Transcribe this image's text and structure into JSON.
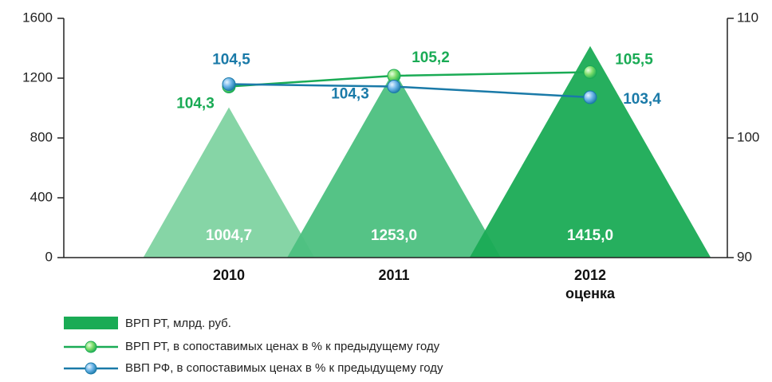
{
  "chart_data": {
    "type": "bar-line",
    "categories": [
      "2010",
      "2011",
      "2012 оценка"
    ],
    "series": [
      {
        "name": "ВРП РТ, млрд. руб.",
        "type": "bar",
        "color": "#1aab55",
        "colors": [
          "#7fd3a1",
          "#4cc07f",
          "#1aab55"
        ],
        "values": [
          1004.7,
          1253.0,
          1415.0
        ],
        "value_labels": [
          "1004,7",
          "1253,0",
          "1415,0"
        ]
      },
      {
        "name": "ВРП РТ, в сопоставимых ценах в % к предыдущему году",
        "type": "line",
        "axis": "y2",
        "color": "#1aab55",
        "values": [
          104.3,
          105.2,
          105.5
        ],
        "value_labels": [
          "104,3",
          "105,2",
          "105,5"
        ]
      },
      {
        "name": "ВВП РФ, в сопоставимых ценах в % к предыдущему году",
        "type": "line",
        "axis": "y2",
        "color": "#1a7aa8",
        "values": [
          104.5,
          104.3,
          103.4
        ],
        "value_labels": [
          "104,5",
          "104,3",
          "103,4"
        ]
      }
    ],
    "ylim": [
      0,
      1600
    ],
    "yticks": [
      0,
      400,
      800,
      1200,
      1600
    ],
    "y2lim": [
      90,
      110
    ],
    "y2ticks": [
      90,
      100,
      110
    ]
  }
}
